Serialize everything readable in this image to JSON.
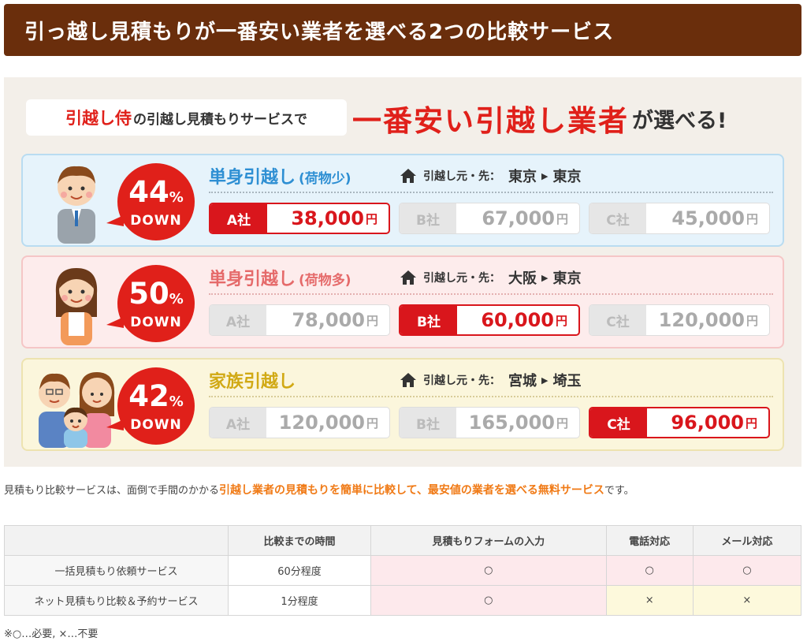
{
  "header": {
    "title": "引っ越し見積もりが一番安い業者を選べる2つの比較サービス"
  },
  "banner": {
    "brand": "引越し侍",
    "tagline_rest": "の引越し見積もりサービスで",
    "claim_red": "一番安い引越し業者",
    "claim_tail": "が選べる!",
    "route_label": "引越し元・先：",
    "down_label": "DOWN",
    "percent_sign": "%",
    "yen": "円",
    "cards": [
      {
        "theme": "blue",
        "discount": "44",
        "plan": "単身引越し",
        "plan_sub": "(荷物少)",
        "from": "東京",
        "to": "東京",
        "icon": "man-avatar-icon",
        "prices": [
          {
            "company": "A社",
            "amount": "38,000",
            "cheapest": true
          },
          {
            "company": "B社",
            "amount": "67,000",
            "cheapest": false
          },
          {
            "company": "C社",
            "amount": "45,000",
            "cheapest": false
          }
        ]
      },
      {
        "theme": "pink",
        "discount": "50",
        "plan": "単身引越し",
        "plan_sub": "(荷物多)",
        "from": "大阪",
        "to": "東京",
        "icon": "woman-avatar-icon",
        "prices": [
          {
            "company": "A社",
            "amount": "78,000",
            "cheapest": false
          },
          {
            "company": "B社",
            "amount": "60,000",
            "cheapest": true
          },
          {
            "company": "C社",
            "amount": "120,000",
            "cheapest": false
          }
        ]
      },
      {
        "theme": "yellow",
        "discount": "42",
        "plan": "家族引越し",
        "plan_sub": "",
        "from": "宮城",
        "to": "埼玉",
        "icon": "family-avatar-icon",
        "prices": [
          {
            "company": "A社",
            "amount": "120,000",
            "cheapest": false
          },
          {
            "company": "B社",
            "amount": "165,000",
            "cheapest": false
          },
          {
            "company": "C社",
            "amount": "96,000",
            "cheapest": true
          }
        ]
      }
    ]
  },
  "intro": {
    "pre": "見積もり比較サービスは、面倒で手間のかかる",
    "highlight": "引越し業者の見積もりを簡単に比較して、最安値の業者を選べる無料サービス",
    "post": "です。"
  },
  "table": {
    "headers": [
      "",
      "比較までの時間",
      "見積もりフォームの入力",
      "電話対応",
      "メール対応"
    ],
    "rows": [
      [
        "一括見積もり依頼サービス",
        "60分程度",
        "○",
        "○",
        "○"
      ],
      [
        "ネット見積もり比較＆予約サービス",
        "1分程度",
        "○",
        "×",
        "×"
      ]
    ]
  },
  "note": "※○…必要, ×…不要",
  "colors": {
    "header_bg": "#6a2e0c",
    "accent_red": "#e0201a",
    "highlight_orange": "#f07a16"
  }
}
